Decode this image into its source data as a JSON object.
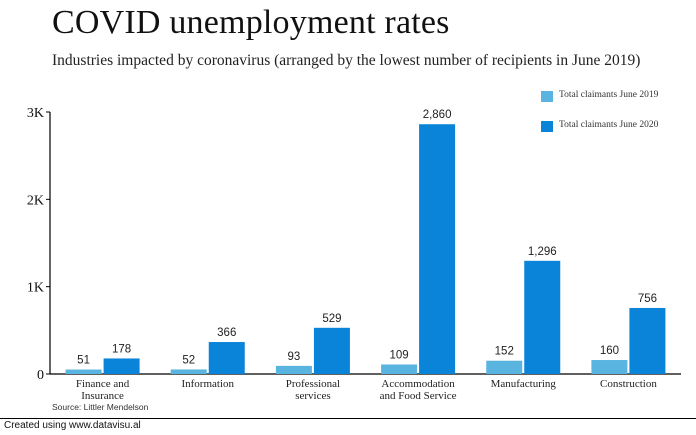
{
  "title": "COVID unemployment rates",
  "subtitle": "Industries impacted by coronavirus (arranged by the lowest number of recipients in June 2019)",
  "source": "Source: Littler Mendelson",
  "footer": "Created using www.datavisu.al",
  "chart_data": {
    "type": "bar",
    "title": "COVID unemployment rates",
    "subtitle": "Industries impacted by coronavirus (arranged by the lowest number of recipients in June 2019)",
    "categories": [
      [
        "Finance and",
        "Insurance"
      ],
      [
        "Information"
      ],
      [
        "Professional",
        "services"
      ],
      [
        "Accommodation",
        "and Food Service"
      ],
      [
        "Manufacturing"
      ],
      [
        "Construction"
      ]
    ],
    "series": [
      {
        "name": "Total claimants June 2019",
        "color": "#5ab4e0",
        "values": [
          51,
          52,
          93,
          109,
          152,
          160
        ],
        "labels": [
          "51",
          "52",
          "93",
          "109",
          "152",
          "160"
        ]
      },
      {
        "name": "Total claimants June 2020",
        "color": "#0a84d8",
        "values": [
          178,
          366,
          529,
          2860,
          1296,
          756
        ],
        "labels": [
          "178",
          "366",
          "529",
          "2,860",
          "1,296",
          "756"
        ]
      }
    ],
    "ylim": [
      0,
      3000
    ],
    "yticks": [
      0,
      1000,
      2000,
      3000
    ],
    "ytick_labels": [
      "0",
      "1K",
      "2K",
      "3K"
    ],
    "xlabel": "",
    "ylabel": "",
    "grid": false,
    "legend_position": "top-right"
  }
}
